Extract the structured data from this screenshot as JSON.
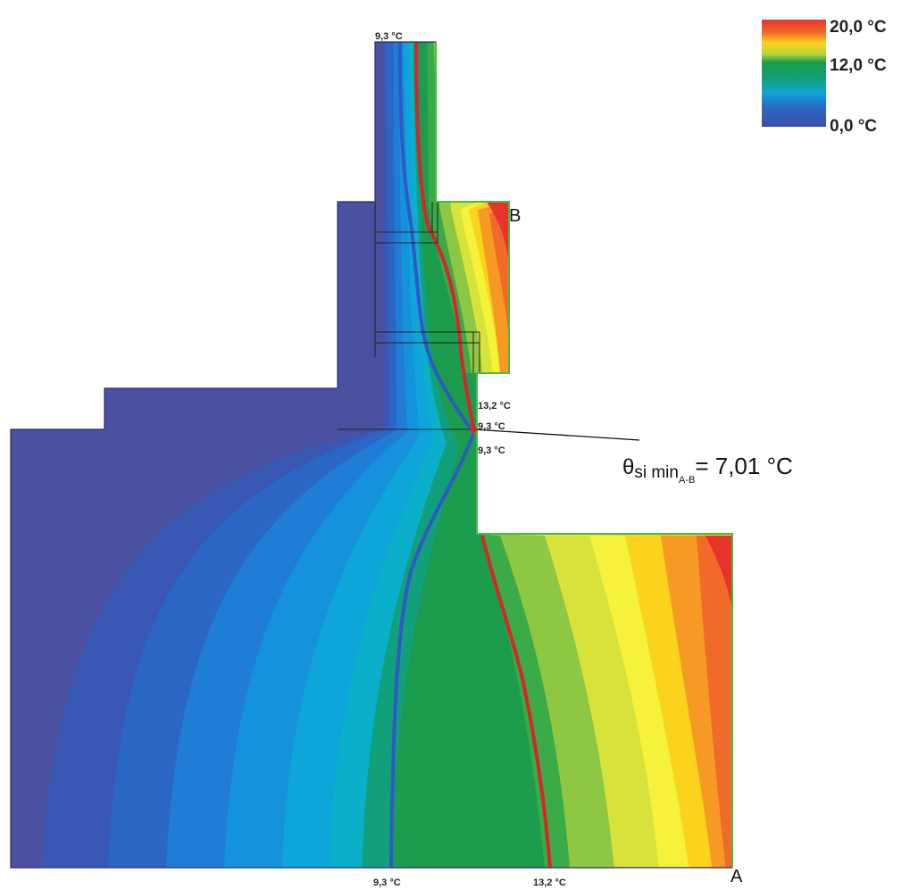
{
  "legend": {
    "max_label": "20,0 °C",
    "mid_label": "12,0 °C",
    "min_label": "0,0 °C",
    "colors": [
      "#e8322b",
      "#f26a2a",
      "#f79a25",
      "#fbd21c",
      "#f6f13b",
      "#b6d63b",
      "#56b74a",
      "#1b9d4d",
      "#11a07a",
      "#0ea6d8",
      "#1592dc",
      "#2a67c4",
      "#3d4fa8"
    ]
  },
  "labels": {
    "top": "9,3 °C",
    "corner_upper": "13,2 °C",
    "corner_mid": "9,3 °C",
    "corner_lower": "9,3 °C",
    "bottom_left": "9,3 °C",
    "bottom_right": "13,2 °C",
    "point_a": "A",
    "point_b": "B"
  },
  "annotation": {
    "theta": "θ",
    "sub_si": "si min",
    "sub_ab": "A-B",
    "value": "= 7,01 °C"
  },
  "isotherms": {
    "red": "#d7262a",
    "blue": "#2f59c6"
  }
}
